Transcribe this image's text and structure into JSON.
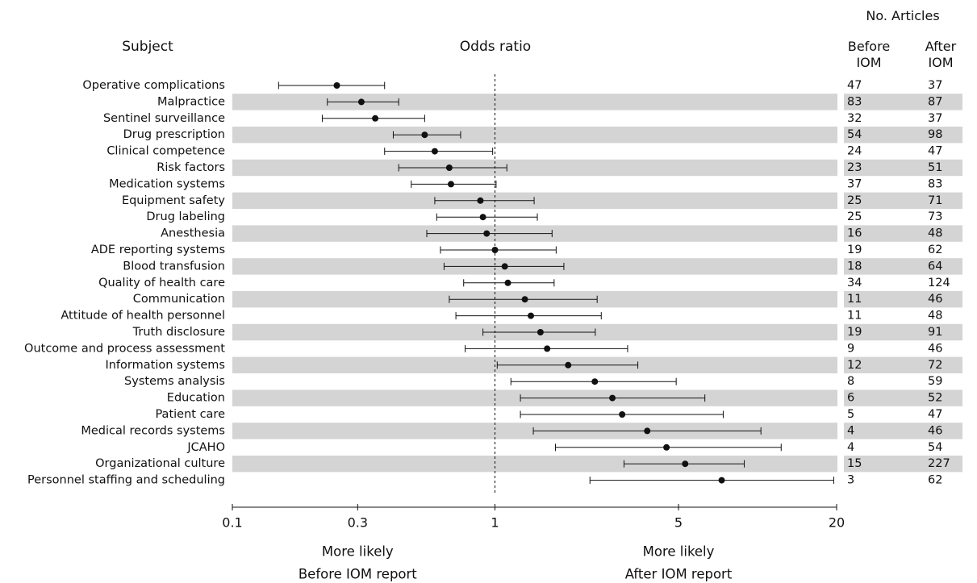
{
  "chart_data": {
    "type": "forest",
    "headers": {
      "subject": "Subject",
      "odds_ratio": "Odds ratio",
      "articles": "No. Articles",
      "before_line1": "Before",
      "before_line2": "IOM",
      "after_line1": "After",
      "after_line2": "IOM"
    },
    "x_scale": "log",
    "xlim": [
      0.1,
      20
    ],
    "x_ticks": [
      0.1,
      0.3,
      1,
      5,
      20
    ],
    "x_tick_labels": [
      "0.1",
      "0.3",
      "1",
      "5",
      "20"
    ],
    "reference_line": 1,
    "x_annotations": [
      {
        "line1": "More likely",
        "line2": "Before IOM report",
        "at": 0.3
      },
      {
        "line1": "More likely",
        "line2": "After IOM report",
        "at": 5
      }
    ],
    "rows": [
      {
        "subject": "Operative complications",
        "or": 0.25,
        "lo": 0.15,
        "hi": 0.38,
        "before": "47",
        "after": "37"
      },
      {
        "subject": "Malpractice",
        "or": 0.31,
        "lo": 0.23,
        "hi": 0.43,
        "before": "83",
        "after": "87"
      },
      {
        "subject": "Sentinel surveillance",
        "or": 0.35,
        "lo": 0.22,
        "hi": 0.54,
        "before": "32",
        "after": "37"
      },
      {
        "subject": "Drug prescription",
        "or": 0.54,
        "lo": 0.41,
        "hi": 0.74,
        "before": "54",
        "after": "98"
      },
      {
        "subject": "Clinical competence",
        "or": 0.59,
        "lo": 0.38,
        "hi": 0.98,
        "before": "24",
        "after": "47"
      },
      {
        "subject": "Risk factors",
        "or": 0.67,
        "lo": 0.43,
        "hi": 1.11,
        "before": "23",
        "after": "51"
      },
      {
        "subject": "Medication systems",
        "or": 0.68,
        "lo": 0.48,
        "hi": 1.01,
        "before": "37",
        "after": "83"
      },
      {
        "subject": "Equipment safety",
        "or": 0.88,
        "lo": 0.59,
        "hi": 1.41,
        "before": "25",
        "after": "71"
      },
      {
        "subject": "Drug labeling",
        "or": 0.9,
        "lo": 0.6,
        "hi": 1.45,
        "before": "25",
        "after": "73"
      },
      {
        "subject": "Anesthesia",
        "or": 0.93,
        "lo": 0.55,
        "hi": 1.65,
        "before": "16",
        "after": "48"
      },
      {
        "subject": "ADE reporting systems",
        "or": 1.0,
        "lo": 0.62,
        "hi": 1.71,
        "before": "19",
        "after": "62"
      },
      {
        "subject": "Blood transfusion",
        "or": 1.09,
        "lo": 0.64,
        "hi": 1.83,
        "before": "18",
        "after": "64"
      },
      {
        "subject": "Quality of health care",
        "or": 1.12,
        "lo": 0.76,
        "hi": 1.68,
        "before": "34",
        "after": "124"
      },
      {
        "subject": "Communication",
        "or": 1.3,
        "lo": 0.67,
        "hi": 2.45,
        "before": "11",
        "after": "46"
      },
      {
        "subject": "Attitude of health personnel",
        "or": 1.37,
        "lo": 0.71,
        "hi": 2.54,
        "before": "11",
        "after": "48"
      },
      {
        "subject": "Truth disclosure",
        "or": 1.49,
        "lo": 0.9,
        "hi": 2.41,
        "before": "19",
        "after": "91"
      },
      {
        "subject": "Outcome and process assessment",
        "or": 1.58,
        "lo": 0.77,
        "hi": 3.2,
        "before": "9",
        "after": "46"
      },
      {
        "subject": "Information systems",
        "or": 1.9,
        "lo": 1.02,
        "hi": 3.5,
        "before": "12",
        "after": "72"
      },
      {
        "subject": "Systems analysis",
        "or": 2.4,
        "lo": 1.15,
        "hi": 4.9,
        "before": "8",
        "after": "59"
      },
      {
        "subject": "Education",
        "or": 2.8,
        "lo": 1.25,
        "hi": 6.3,
        "before": "6",
        "after": "52"
      },
      {
        "subject": "Patient care",
        "or": 3.05,
        "lo": 1.25,
        "hi": 7.4,
        "before": "5",
        "after": "47"
      },
      {
        "subject": "Medical records systems",
        "or": 3.8,
        "lo": 1.4,
        "hi": 10.3,
        "before": "4",
        "after": "46"
      },
      {
        "subject": "JCAHO",
        "or": 4.5,
        "lo": 1.7,
        "hi": 12.3,
        "before": "4",
        "after": "54"
      },
      {
        "subject": "Organizational culture",
        "or": 5.3,
        "lo": 3.1,
        "hi": 8.9,
        "before": "15",
        "after": "227"
      },
      {
        "subject": "Personnel staffing and scheduling",
        "or": 7.3,
        "lo": 2.3,
        "hi": 19.5,
        "before": "3",
        "after": "62"
      }
    ],
    "colors": {
      "band": "#d4d4d4",
      "ink": "#111111"
    }
  }
}
